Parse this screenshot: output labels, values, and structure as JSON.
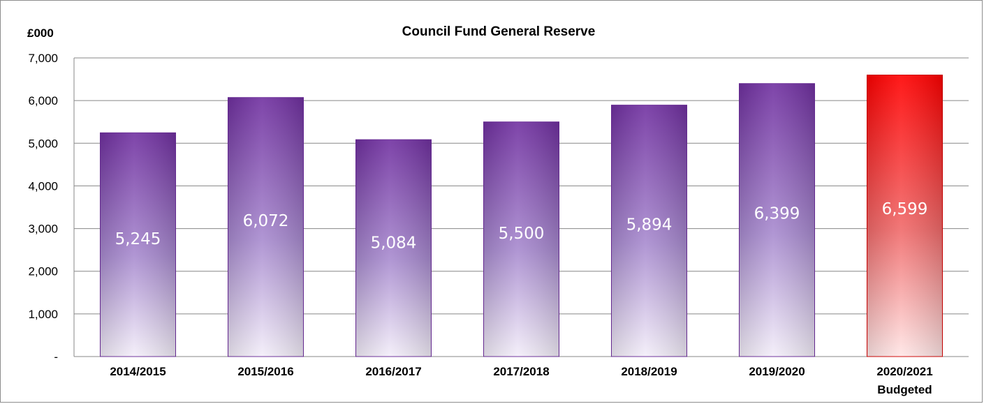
{
  "chart_data": {
    "type": "bar",
    "title": "Council Fund General Reserve",
    "ylabel": "£000",
    "xlabel": "",
    "categories": [
      [
        "2014/2015"
      ],
      [
        "2015/2016"
      ],
      [
        "2016/2017"
      ],
      [
        "2017/2018"
      ],
      [
        "2018/2019"
      ],
      [
        "2019/2020"
      ],
      [
        "2020/2021",
        "Budgeted"
      ]
    ],
    "values": [
      5245,
      6072,
      5084,
      5500,
      5894,
      6399,
      6599
    ],
    "value_labels": [
      "5,245",
      "6,072",
      "5,084",
      "5,500",
      "5,894",
      "6,399",
      "6,599"
    ],
    "ylim": [
      0,
      7000
    ],
    "yticks": [
      0,
      1000,
      2000,
      3000,
      4000,
      5000,
      6000,
      7000
    ],
    "ytick_labels": [
      "-",
      "1,000",
      "2,000",
      "3,000",
      "4,000",
      "5,000",
      "6,000",
      "7,000"
    ],
    "grid": true,
    "legend": "none",
    "colors": {
      "bar_top": "#7030a0",
      "bar_bottom": "#f3eef9",
      "highlight_top": "#ff0000",
      "highlight_bottom": "#ffe6e6",
      "highlight_index": 6,
      "grid": "#878787",
      "data_label": "#ffffff"
    }
  }
}
